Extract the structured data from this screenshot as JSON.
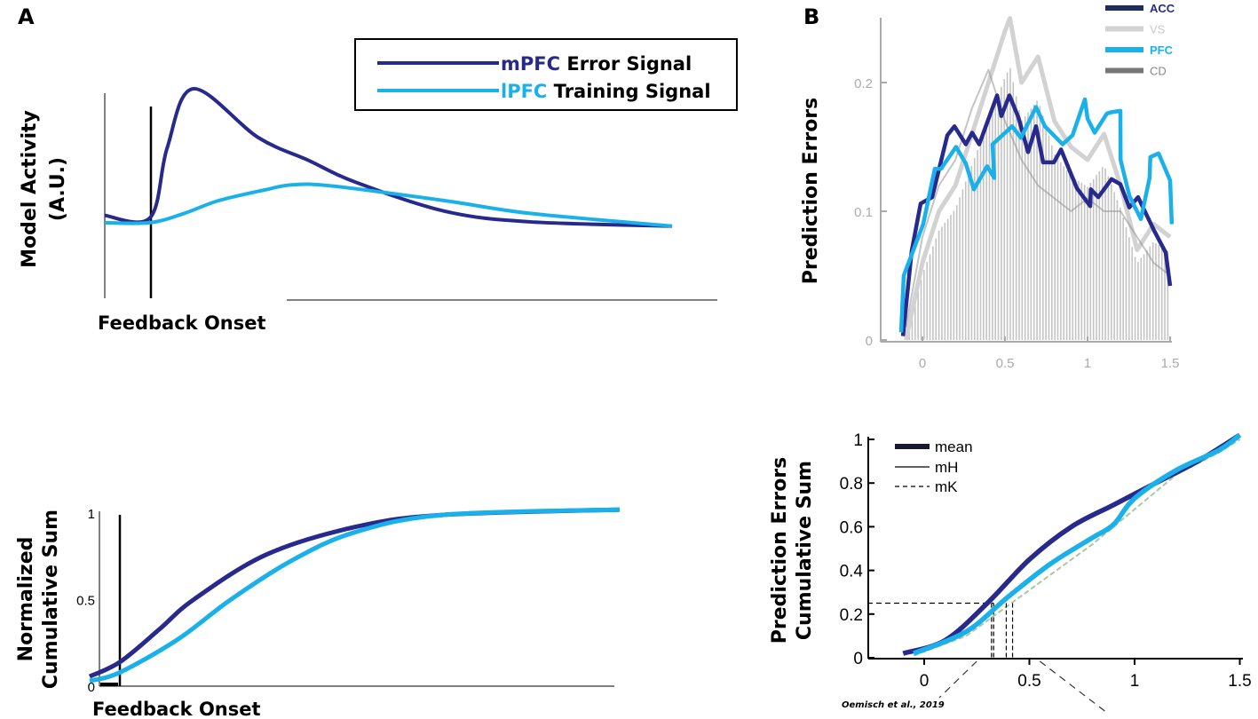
{
  "colors": {
    "dark": "#272a8c",
    "light": "#1ab1ea",
    "vs": "#d2d2d2",
    "cd": "#8a8a8a",
    "legend_acc": "#1f2d5c"
  },
  "chart_data": [
    {
      "panel_label": "A",
      "type": "line",
      "title": "",
      "xlabel": "Feedback Onset",
      "ylabel": "Model Activity (A.U.)",
      "ylabel_lines": [
        "Model Activity",
        "(A.U.)"
      ],
      "xlim": [
        0,
        100
      ],
      "ylim": [
        0,
        1
      ],
      "onset": 8,
      "legend": {
        "placement": "top-right",
        "entries": [
          {
            "prefix": "mPFC",
            "rest": " Error Signal"
          },
          {
            "prefix": "lPFC",
            "rest": " Training Signal"
          }
        ]
      },
      "series": [
        {
          "name": "mPFC Error Signal",
          "x": [
            0,
            8,
            11,
            15.6,
            27,
            36,
            44,
            60,
            75,
            100
          ],
          "y": [
            0.4,
            0.39,
            0.72,
            1.0,
            0.77,
            0.66,
            0.56,
            0.42,
            0.37,
            0.35
          ]
        },
        {
          "name": "lPFC Training Signal",
          "x": [
            0,
            8,
            14,
            20,
            28,
            33,
            40,
            60,
            75,
            100
          ],
          "y": [
            0.366,
            0.366,
            0.41,
            0.47,
            0.52,
            0.545,
            0.54,
            0.47,
            0.41,
            0.35
          ]
        }
      ]
    },
    {
      "panel_label": "B",
      "type": "line",
      "xlabel": "",
      "ylabel": "Prediction Errors",
      "xlim": [
        -0.25,
        1.5
      ],
      "ylim": [
        0,
        0.25
      ],
      "xticks": [
        "0",
        "0.5",
        "1",
        "1.5"
      ],
      "xtick_values": [
        0,
        0.5,
        1,
        1.5
      ],
      "yticks": [
        "0",
        "0.1",
        "0.2"
      ],
      "ytick_values": [
        0,
        0.1,
        0.2
      ],
      "legend": {
        "placement": "top-right",
        "entries": [
          "ACC",
          "VS",
          "PFC",
          "CD"
        ]
      },
      "series": [
        {
          "name": "VS",
          "x": [
            -0.1,
            0,
            0.1,
            0.2,
            0.3,
            0.4,
            0.5,
            0.53,
            0.6,
            0.7,
            0.8,
            0.9,
            1.0,
            1.1,
            1.2,
            1.3,
            1.4,
            1.5
          ],
          "y": [
            0,
            0.06,
            0.1,
            0.12,
            0.16,
            0.2,
            0.24,
            0.25,
            0.2,
            0.22,
            0.17,
            0.15,
            0.14,
            0.16,
            0.12,
            0.07,
            0.09,
            0.08
          ]
        },
        {
          "name": "CD",
          "x": [
            -0.1,
            0,
            0.1,
            0.2,
            0.3,
            0.4,
            0.5,
            0.6,
            0.7,
            0.8,
            0.9,
            1.0,
            1.1,
            1.2,
            1.3,
            1.4,
            1.5
          ],
          "y": [
            0.01,
            0.08,
            0.12,
            0.14,
            0.18,
            0.21,
            0.17,
            0.14,
            0.12,
            0.11,
            0.1,
            0.11,
            0.1,
            0.1,
            0.08,
            0.06,
            0.05
          ]
        },
        {
          "name": "ACC",
          "x": [
            -0.118,
            -0.065,
            -0.011,
            0.059,
            0.151,
            0.194,
            0.263,
            0.301,
            0.344,
            0.452,
            0.478,
            0.527,
            0.581,
            0.64,
            0.688,
            0.731,
            0.796,
            0.839,
            0.935,
            1.016,
            1.02,
            1.065,
            1.145,
            1.199,
            1.253,
            1.306,
            1.403,
            1.473,
            1.5
          ],
          "y": [
            0.003,
            0.069,
            0.106,
            0.111,
            0.159,
            0.166,
            0.152,
            0.161,
            0.152,
            0.19,
            0.174,
            0.19,
            0.173,
            0.146,
            0.166,
            0.138,
            0.138,
            0.148,
            0.118,
            0.104,
            0.117,
            0.111,
            0.125,
            0.121,
            0.103,
            0.111,
            0.085,
            0.068,
            0.042
          ]
        },
        {
          "name": "PFC",
          "x": [
            -0.129,
            -0.113,
            0.005,
            0.075,
            0.113,
            0.204,
            0.263,
            0.312,
            0.392,
            0.435,
            0.425,
            0.543,
            0.597,
            0.688,
            0.742,
            0.849,
            0.909,
            0.984,
            1.0,
            1.043,
            1.118,
            1.145,
            1.199,
            1.2,
            1.253,
            1.323,
            1.376,
            1.38,
            1.43,
            1.5,
            1.51
          ],
          "y": [
            0.006,
            0.05,
            0.09,
            0.133,
            0.133,
            0.15,
            0.137,
            0.117,
            0.135,
            0.126,
            0.152,
            0.166,
            0.157,
            0.181,
            0.166,
            0.152,
            0.159,
            0.187,
            0.172,
            0.161,
            0.176,
            0.177,
            0.178,
            0.14,
            0.112,
            0.094,
            0.126,
            0.142,
            0.145,
            0.124,
            0.09
          ]
        }
      ]
    },
    {
      "type": "line",
      "xlabel": "Feedback Onset",
      "ylabel": "Normalized Cumulative Sum",
      "ylabel_lines": [
        "Normalized",
        "Cumulative Sum"
      ],
      "xlim": [
        0,
        100
      ],
      "ylim": [
        0,
        1
      ],
      "onset": 4,
      "yticks": [
        "0",
        "0.5",
        "1"
      ],
      "ytick_values": [
        0,
        0.5,
        1
      ],
      "series": [
        {
          "name": "mPFC",
          "x": [
            -1.9,
            4,
            11.7,
            18.3,
            32.4,
            49.7,
            66.9,
            101
          ],
          "y": [
            0.056,
            0.14,
            0.33,
            0.5,
            0.76,
            0.92,
            0.99,
            1.02
          ]
        },
        {
          "name": "lPFC",
          "x": [
            -1.9,
            4,
            15.2,
            25.5,
            37.6,
            49.7,
            66.9,
            101
          ],
          "y": [
            0.03,
            0.08,
            0.27,
            0.5,
            0.73,
            0.89,
            0.99,
            1.02
          ]
        }
      ]
    },
    {
      "type": "line",
      "xlabel": "",
      "ylabel": "Prediction Errors Cumulative Sum",
      "ylabel_lines": [
        "Prediction Errors",
        "Cumulative Sum"
      ],
      "xlim": [
        -0.27,
        1.5
      ],
      "ylim": [
        0,
        1
      ],
      "xticks": [
        "0",
        "0.5",
        "1",
        "1.5"
      ],
      "xtick_values": [
        0,
        0.5,
        1,
        1.5
      ],
      "yticks": [
        "0",
        "0.2",
        "0.4",
        "0.6",
        "0.8",
        "1"
      ],
      "ytick_values": [
        0,
        0.2,
        0.4,
        0.6,
        0.8,
        1
      ],
      "legend": {
        "placement": "top-left",
        "entries": [
          "mean",
          "mH",
          "mK"
        ]
      },
      "threshold": 0.25,
      "threshold_markers_x": [
        0.32,
        0.33,
        0.39,
        0.42
      ],
      "citation": "Oemisch et al., 2019",
      "series": [
        {
          "name": "ACC mean",
          "x": [
            -0.1,
            0.1,
            0.3,
            0.5,
            0.7,
            0.9,
            1.1,
            1.3,
            1.5
          ],
          "y": [
            0.02,
            0.08,
            0.25,
            0.45,
            0.6,
            0.7,
            0.8,
            0.9,
            1.02
          ]
        },
        {
          "name": "PFC mean",
          "x": [
            -0.05,
            0.2,
            0.4,
            0.6,
            0.8,
            0.9,
            1.0,
            1.2,
            1.4,
            1.5
          ],
          "y": [
            0.02,
            0.12,
            0.28,
            0.43,
            0.55,
            0.61,
            0.73,
            0.86,
            0.95,
            1.02
          ]
        }
      ]
    }
  ]
}
